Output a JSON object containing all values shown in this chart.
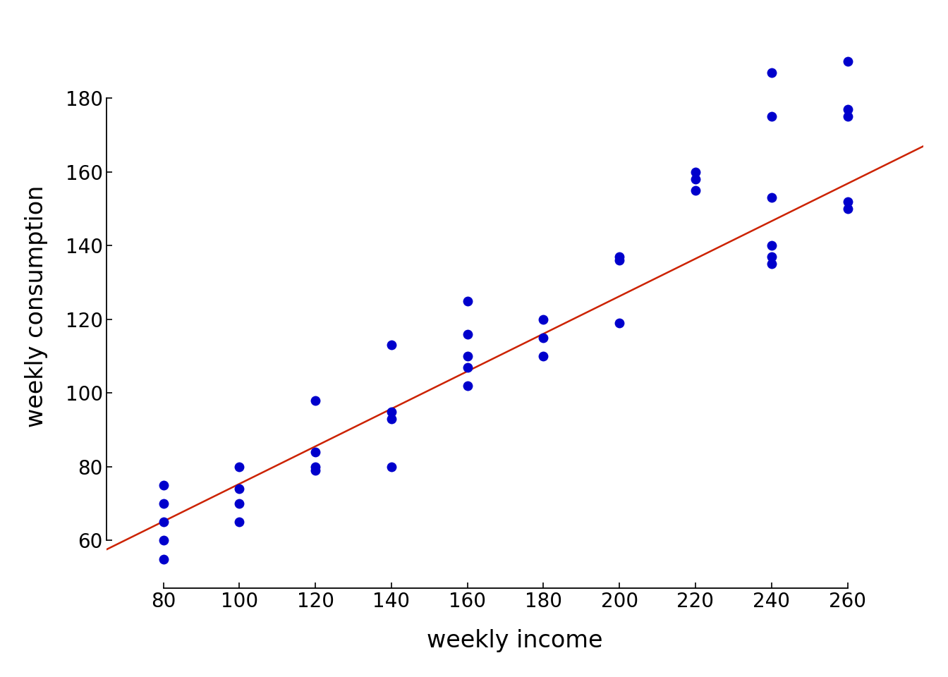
{
  "x_points": [
    80,
    80,
    80,
    80,
    80,
    100,
    100,
    100,
    100,
    120,
    120,
    120,
    120,
    140,
    140,
    140,
    140,
    160,
    160,
    160,
    160,
    160,
    180,
    180,
    180,
    200,
    200,
    200,
    220,
    220,
    220,
    240,
    240,
    240,
    240,
    240,
    240,
    260,
    260,
    260,
    260,
    260
  ],
  "y_points": [
    55,
    60,
    65,
    70,
    75,
    65,
    70,
    74,
    80,
    79,
    80,
    84,
    98,
    80,
    93,
    95,
    113,
    102,
    107,
    110,
    116,
    125,
    110,
    115,
    120,
    119,
    136,
    137,
    155,
    158,
    160,
    135,
    137,
    140,
    153,
    175,
    187,
    150,
    152,
    175,
    177,
    190
  ],
  "regression_intercept": 24.4545,
  "regression_slope": 0.5091,
  "xlim": [
    65,
    280
  ],
  "ylim": [
    47,
    200
  ],
  "x_line_start": 65,
  "x_line_end": 280,
  "xticks": [
    80,
    100,
    120,
    140,
    160,
    180,
    200,
    220,
    240,
    260
  ],
  "yticks": [
    60,
    80,
    100,
    120,
    140,
    160,
    180
  ],
  "xlabel": "weekly income",
  "ylabel": "weekly consumption",
  "point_color": "#0000CC",
  "line_color": "#CC2200",
  "background_color": "#FFFFFF",
  "point_size": 100,
  "tick_fontsize": 20,
  "label_fontsize": 24
}
